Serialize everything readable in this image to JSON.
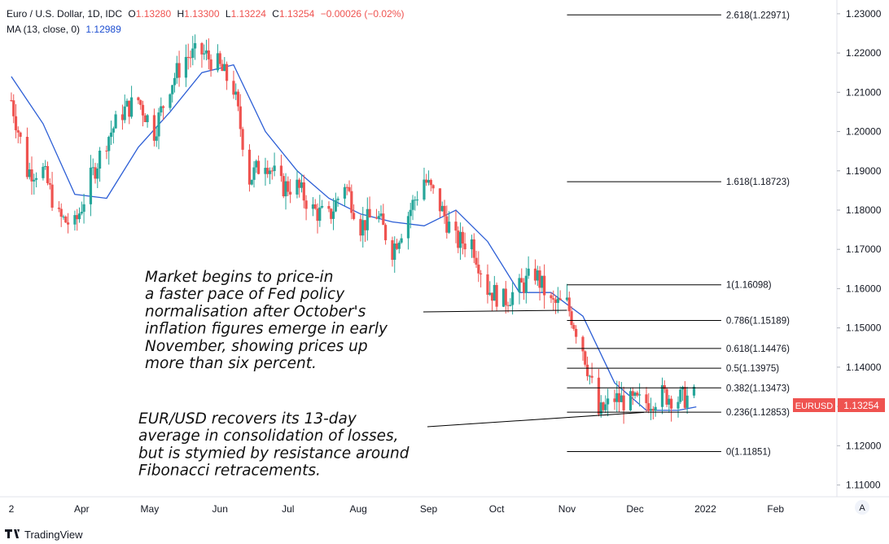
{
  "header": {
    "symbol": "Euro / U.S. Dollar, 1D, IDC",
    "open_label": "O",
    "open": "1.13280",
    "high_label": "H",
    "high": "1.13300",
    "low_label": "L",
    "low": "1.13224",
    "close_label": "C",
    "close": "1.13254",
    "change": "−0.00026 (−0.02%)",
    "ma_label": "MA (13, close, 0)",
    "ma_value": "1.12989"
  },
  "price_tag": {
    "symbol": "EURUSD",
    "price": "1.13254"
  },
  "scale_mode_button": "A",
  "branding": "TradingView",
  "annotations": [
    {
      "lines": [
        "Market begins to price-in",
        "a faster pace of Fed policy",
        "normalisation after October's",
        "inflation figures emerge in early",
        "November, showing prices up",
        "more than six percent."
      ],
      "points_to": [
        "2021-11-01",
        1.1545
      ]
    },
    {
      "lines": [
        "EUR/USD recovers its 13-day",
        "average in consolidation of losses,",
        "but is stymied by resistance around",
        "Fibonacci retracements."
      ],
      "points_to": [
        "2021-12-05",
        1.1285
      ]
    }
  ],
  "colors": {
    "up": "#26a69a",
    "down": "#ef5350",
    "ma": "#2d5fd6",
    "fib": "#000000",
    "price_tag": "#ef5350"
  },
  "chart_data": {
    "type": "line",
    "title": "Euro / U.S. Dollar, 1D, IDC",
    "x_tick_labels": [
      "2",
      "Apr",
      "May",
      "Jun",
      "Jul",
      "Aug",
      "Sep",
      "Oct",
      "Nov",
      "Dec",
      "2022",
      "Feb"
    ],
    "y_tick_labels": [
      "1.23000",
      "1.22000",
      "1.21000",
      "1.20000",
      "1.19000",
      "1.18000",
      "1.17000",
      "1.16000",
      "1.15000",
      "1.14000",
      "1.13000",
      "1.12000",
      "1.11000"
    ],
    "ylim": [
      1.107,
      1.2335
    ],
    "xlim": [
      "2021-02-24",
      "2022-02-28"
    ],
    "grid": false,
    "series": [
      {
        "name": "EURUSD",
        "points": [
          [
            "2021-03-01",
            1.208
          ],
          [
            "2021-03-08",
            1.19
          ],
          [
            "2021-03-15",
            1.19
          ],
          [
            "2021-03-22",
            1.178
          ],
          [
            "2021-03-29",
            1.176
          ],
          [
            "2021-04-05",
            1.188
          ],
          [
            "2021-04-12",
            1.198
          ],
          [
            "2021-04-19",
            1.205
          ],
          [
            "2021-04-26",
            1.208
          ],
          [
            "2021-05-03",
            1.2
          ],
          [
            "2021-05-10",
            1.212
          ],
          [
            "2021-05-17",
            1.219
          ],
          [
            "2021-05-24",
            1.22
          ],
          [
            "2021-05-31",
            1.217
          ],
          [
            "2021-06-07",
            1.211
          ],
          [
            "2021-06-14",
            1.188
          ],
          [
            "2021-06-21",
            1.193
          ],
          [
            "2021-06-28",
            1.186
          ],
          [
            "2021-07-05",
            1.186
          ],
          [
            "2021-07-12",
            1.18
          ],
          [
            "2021-07-19",
            1.178
          ],
          [
            "2021-07-26",
            1.187
          ],
          [
            "2021-08-02",
            1.176
          ],
          [
            "2021-08-09",
            1.179
          ],
          [
            "2021-08-16",
            1.17
          ],
          [
            "2021-08-23",
            1.179
          ],
          [
            "2021-08-30",
            1.188
          ],
          [
            "2021-09-06",
            1.181
          ],
          [
            "2021-09-13",
            1.172
          ],
          [
            "2021-09-20",
            1.172
          ],
          [
            "2021-09-27",
            1.16
          ],
          [
            "2021-10-04",
            1.157
          ],
          [
            "2021-10-11",
            1.16
          ],
          [
            "2021-10-18",
            1.164
          ],
          [
            "2021-10-25",
            1.156
          ],
          [
            "2021-11-01",
            1.156
          ],
          [
            "2021-11-08",
            1.145
          ],
          [
            "2021-11-15",
            1.128
          ],
          [
            "2021-11-22",
            1.132
          ],
          [
            "2021-11-29",
            1.131
          ],
          [
            "2021-12-06",
            1.131
          ],
          [
            "2021-12-13",
            1.133
          ],
          [
            "2021-12-20",
            1.132
          ],
          [
            "2021-12-27",
            1.1325
          ]
        ]
      },
      {
        "name": "MA (13, close, 0)",
        "points": [
          [
            "2021-03-01",
            1.214
          ],
          [
            "2021-03-15",
            1.202
          ],
          [
            "2021-03-29",
            1.184
          ],
          [
            "2021-04-12",
            1.183
          ],
          [
            "2021-04-26",
            1.196
          ],
          [
            "2021-05-10",
            1.205
          ],
          [
            "2021-05-24",
            1.215
          ],
          [
            "2021-06-07",
            1.217
          ],
          [
            "2021-06-21",
            1.2
          ],
          [
            "2021-07-05",
            1.19
          ],
          [
            "2021-07-19",
            1.183
          ],
          [
            "2021-08-02",
            1.179
          ],
          [
            "2021-08-16",
            1.177
          ],
          [
            "2021-08-30",
            1.176
          ],
          [
            "2021-09-13",
            1.18
          ],
          [
            "2021-09-27",
            1.172
          ],
          [
            "2021-10-11",
            1.159
          ],
          [
            "2021-10-25",
            1.159
          ],
          [
            "2021-11-08",
            1.153
          ],
          [
            "2021-11-22",
            1.136
          ],
          [
            "2021-12-06",
            1.129
          ],
          [
            "2021-12-20",
            1.129
          ],
          [
            "2021-12-28",
            1.12989
          ]
        ]
      }
    ],
    "fibonacci": {
      "start": "2021-11-01",
      "end": "2022-01-08",
      "levels": [
        {
          "label": "2.618(1.22971)",
          "value": 1.22971
        },
        {
          "label": "1.618(1.18723)",
          "value": 1.18723
        },
        {
          "label": "1(1.16098)",
          "value": 1.16098
        },
        {
          "label": "0.786(1.15189)",
          "value": 1.15189
        },
        {
          "label": "0.618(1.14476)",
          "value": 1.14476
        },
        {
          "label": "0.5(1.13975)",
          "value": 1.13975
        },
        {
          "label": "0.382(1.13473)",
          "value": 1.13473
        },
        {
          "label": "0.236(1.12853)",
          "value": 1.12853
        },
        {
          "label": "0(1.11851)",
          "value": 1.11851
        }
      ]
    }
  }
}
